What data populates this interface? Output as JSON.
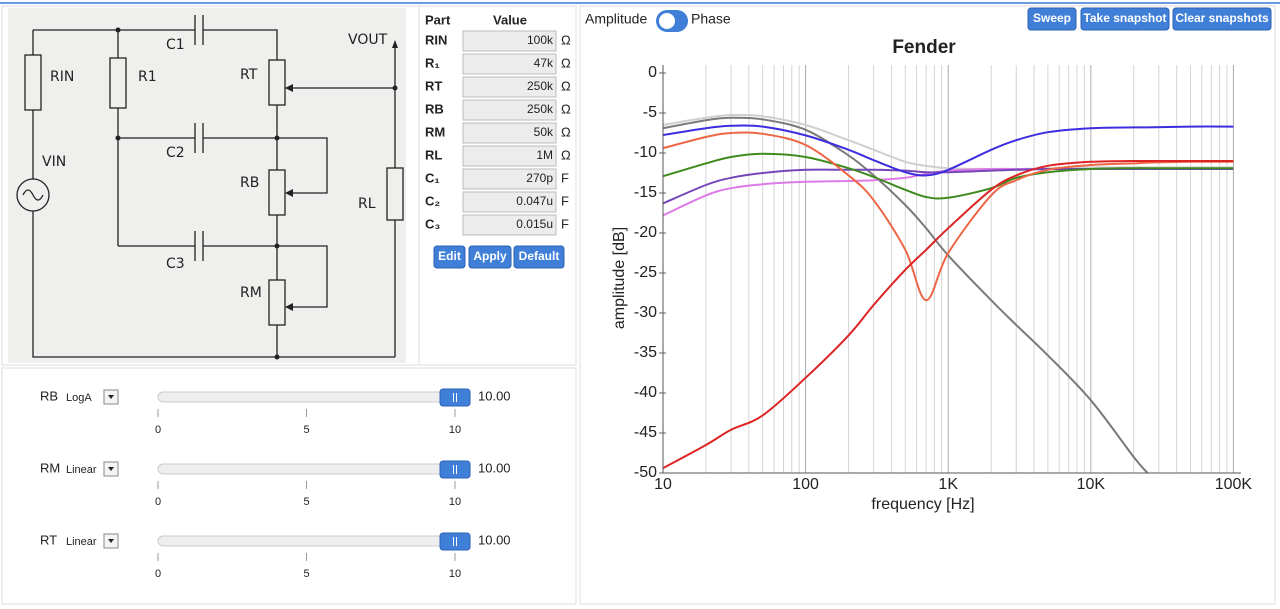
{
  "circuit": {
    "labels": [
      "C1",
      "VOUT",
      "RIN",
      "R1",
      "RT",
      "VIN",
      "C2",
      "RB",
      "RL",
      "C3",
      "RM"
    ]
  },
  "parts_table": {
    "headers": [
      "Part",
      "Value"
    ],
    "rows": [
      [
        "RIN",
        "100k",
        "Ω"
      ],
      [
        "R₁",
        "47k",
        "Ω"
      ],
      [
        "RT",
        "250k",
        "Ω"
      ],
      [
        "RB",
        "250k",
        "Ω"
      ],
      [
        "RM",
        "50k",
        "Ω"
      ],
      [
        "RL",
        "1M",
        "Ω"
      ],
      [
        "C₁",
        "270p",
        "F"
      ],
      [
        "C₂",
        "0.047u",
        "F"
      ],
      [
        "C₃",
        "0.015u",
        "F"
      ]
    ]
  },
  "table_buttons": [
    "Edit",
    "Apply",
    "Default"
  ],
  "sliders": [
    {
      "name": "RB",
      "taper": "LogA",
      "value": 10,
      "value_label": "10.00",
      "range": [
        0,
        10
      ],
      "ticks": [
        0,
        5,
        10
      ]
    },
    {
      "name": "RM",
      "taper": "Linear",
      "value": 10,
      "value_label": "10.00",
      "range": [
        0,
        10
      ],
      "ticks": [
        0,
        5,
        10
      ]
    },
    {
      "name": "RT",
      "taper": "Linear",
      "value": 10,
      "value_label": "10.00",
      "range": [
        0,
        10
      ],
      "ticks": [
        0,
        5,
        10
      ]
    }
  ],
  "toolbar": {
    "toggle_left": "Amplitude",
    "toggle_right": "Phase",
    "buttons": [
      "Sweep",
      "Take snapshot",
      "Clear snapshots"
    ]
  },
  "chart_data": {
    "type": "line",
    "title": "Fender",
    "x_label": "frequency [Hz]",
    "y_label": "amplitude [dB]",
    "xscale": "log",
    "xgrid": true,
    "xlim": [
      10,
      113000
    ],
    "ylim": [
      -50,
      1
    ],
    "xticks": [
      10,
      100,
      {
        "value": 1000,
        "label": "1K"
      },
      {
        "value": 10000,
        "label": "10K"
      },
      {
        "value": 100000,
        "label": "100K"
      }
    ],
    "xminorticks": [
      20,
      30,
      40,
      50,
      60,
      70,
      80,
      90,
      200,
      300,
      400,
      500,
      600,
      700,
      800,
      900,
      2000,
      3000,
      4000,
      5000,
      6000,
      7000,
      8000,
      9000,
      20000,
      30000,
      40000,
      50000,
      60000,
      70000,
      80000,
      90000
    ],
    "yticks": [
      0,
      -5,
      -10,
      -15,
      -20,
      -25,
      -30,
      -35,
      -40,
      -45,
      -50
    ],
    "x": [
      10,
      20,
      30,
      50,
      100,
      200,
      300,
      500,
      700,
      1000,
      2000,
      3000,
      5000,
      10000,
      20000,
      25000,
      50000,
      100000
    ],
    "series": [
      {
        "color": "#cfcfcf",
        "values": [
          -6.5,
          -5.6,
          -5.25,
          -5.4,
          -6.5,
          -8.4,
          -9.6,
          -11.1,
          -11.6,
          -11.9,
          -12.0,
          -12.0,
          -11.9,
          -11.8,
          -11.8,
          -11.8,
          -11.8,
          -11.8
        ]
      },
      {
        "color": "#7a7a7a",
        "values": [
          -6.9,
          -5.9,
          -5.6,
          -5.8,
          -7.1,
          -10.3,
          -12.8,
          -16.5,
          -19.4,
          -22.8,
          -28.4,
          -31.5,
          -35.3,
          -40.9,
          -48,
          -50,
          null,
          null
        ]
      },
      {
        "color": "#dd7ae8",
        "values": [
          -17.8,
          -15.3,
          -14.4,
          -13.9,
          -13.6,
          -13.5,
          -13.4,
          -13.1,
          -12.6,
          -12.2,
          -12.0,
          -12.0,
          -12.0,
          -12.0,
          -12.0,
          -12.0,
          -12.0,
          -12.0
        ]
      },
      {
        "color": "#7446b8",
        "values": [
          -16.3,
          -14.0,
          -13.1,
          -12.5,
          -12.1,
          -12.1,
          -12.1,
          -12.2,
          -12.4,
          -12.4,
          -12.2,
          -12.1,
          -12.0,
          -12.0,
          -12.0,
          -12.0,
          -12.0,
          -12.0
        ]
      },
      {
        "color": "#3f8a1e",
        "values": [
          -12.9,
          -11.3,
          -10.5,
          -10.1,
          -10.5,
          -11.9,
          -13.0,
          -14.6,
          -15.5,
          -15.6,
          -14.4,
          -13.1,
          -12.4,
          -12.0,
          -11.9,
          -11.9,
          -11.9,
          -11.9
        ]
      },
      {
        "color": "#ee6645",
        "values": [
          -9.4,
          -8.0,
          -7.5,
          -7.6,
          -9.0,
          -12.8,
          -15.9,
          -22.1,
          -28.4,
          -22.5,
          -15.3,
          -13.4,
          -12.1,
          -11.5,
          -11.3,
          -11.2,
          -11.1,
          -11.1
        ]
      },
      {
        "color": "#dd2424",
        "values": [
          -49.4,
          -46.5,
          -44.6,
          -42.8,
          -38.1,
          -32.8,
          -29.0,
          -24.6,
          -22.1,
          -19.4,
          -14.6,
          -12.8,
          -11.6,
          -11.1,
          -11.0,
          -11.0,
          -11.0,
          -11.0
        ]
      },
      {
        "color": "#3d2ddf",
        "values": [
          -7.75,
          -6.9,
          -6.6,
          -6.7,
          -7.8,
          -9.6,
          -10.9,
          -12.4,
          -12.8,
          -12.1,
          -9.6,
          -8.4,
          -7.4,
          -6.9,
          -6.8,
          -6.8,
          -6.7,
          -6.7
        ]
      }
    ]
  }
}
